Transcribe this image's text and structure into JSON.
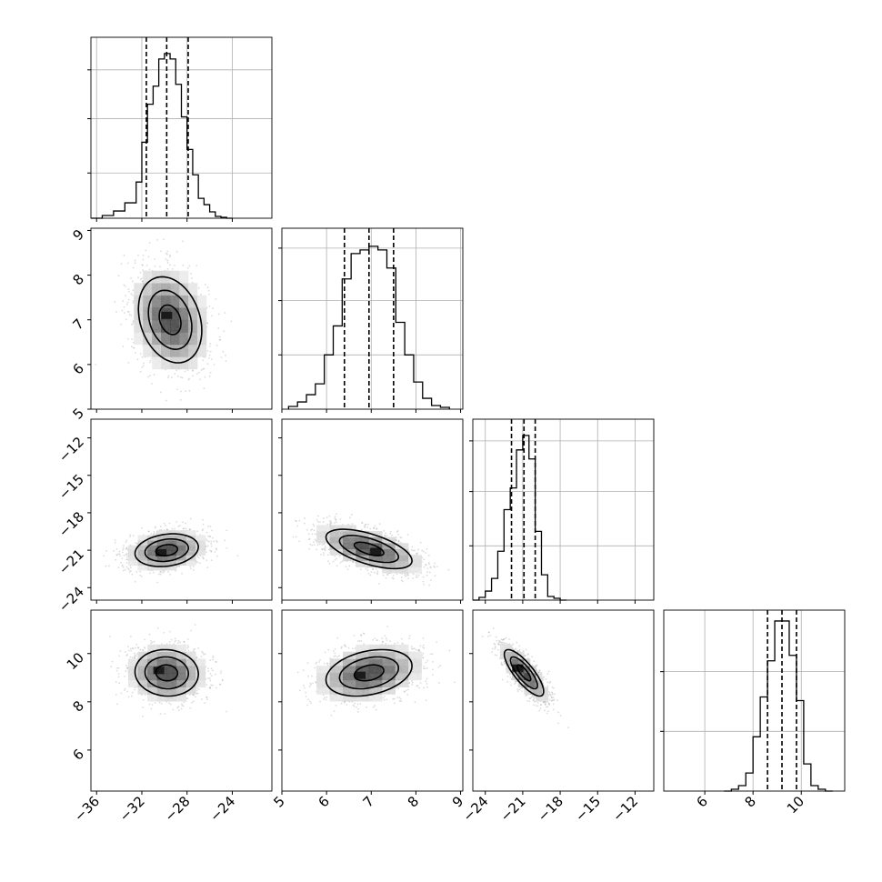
{
  "chart_data": {
    "type": "corner",
    "grid": true,
    "parameters": [
      {
        "range": [
          -36.5,
          -20.5
        ],
        "ticks": [
          -36,
          -32,
          -28,
          -24
        ],
        "tick_labels": [
          "−36",
          "−32",
          "−28",
          "−24"
        ],
        "quantiles": [
          -31.6,
          -29.8,
          -27.9
        ],
        "hist_grid": [
          0.25,
          0.55,
          0.82
        ],
        "hist_edges": [
          -36.5,
          -35.5,
          -34.5,
          -33.5,
          -32.5,
          -32.0,
          -31.5,
          -31.0,
          -30.5,
          -30.0,
          -29.5,
          -29.0,
          -28.5,
          -28.0,
          -27.5,
          -27.0,
          -26.5,
          -26.0,
          -25.5,
          -25.0,
          -24.5,
          -24.0
        ],
        "hist_values": [
          0.0,
          0.015,
          0.04,
          0.085,
          0.2,
          0.42,
          0.63,
          0.73,
          0.88,
          0.91,
          0.88,
          0.74,
          0.56,
          0.38,
          0.24,
          0.11,
          0.075,
          0.035,
          0.01,
          0.005,
          0.0
        ]
      },
      {
        "range": [
          5.0,
          9.05
        ],
        "ticks": [
          5,
          6,
          7,
          8,
          9
        ],
        "tick_labels": [
          "5",
          "6",
          "7",
          "8",
          "9"
        ],
        "quantiles": [
          6.4,
          6.95,
          7.5
        ],
        "hist_grid": [
          0.3,
          0.6,
          0.89
        ],
        "hist_edges": [
          5.15,
          5.35,
          5.55,
          5.75,
          5.95,
          6.15,
          6.35,
          6.55,
          6.75,
          6.95,
          7.15,
          7.35,
          7.55,
          7.75,
          7.95,
          8.15,
          8.35,
          8.55,
          8.75
        ],
        "hist_values": [
          0.015,
          0.04,
          0.08,
          0.14,
          0.3,
          0.46,
          0.72,
          0.86,
          0.88,
          0.9,
          0.88,
          0.78,
          0.48,
          0.3,
          0.15,
          0.06,
          0.02,
          0.01
        ]
      },
      {
        "range": [
          -25.0,
          -10.5
        ],
        "ticks": [
          -24,
          -21,
          -18,
          -15,
          -12
        ],
        "tick_labels": [
          "−24",
          "−21",
          "−18",
          "−15",
          "−12"
        ],
        "quantiles": [
          -21.9,
          -20.9,
          -20.0
        ],
        "hist_grid": [
          0.3,
          0.6,
          0.88
        ],
        "hist_edges": [
          -25.0,
          -24.5,
          -24.0,
          -23.5,
          -23.0,
          -22.5,
          -22.0,
          -21.5,
          -21.0,
          -20.5,
          -20.0,
          -19.5,
          -19.0,
          -18.5,
          -18.0,
          -17.5
        ],
        "hist_values": [
          0.0,
          0.015,
          0.05,
          0.12,
          0.27,
          0.5,
          0.62,
          0.83,
          0.91,
          0.78,
          0.38,
          0.14,
          0.02,
          0.01,
          0.0
        ]
      },
      {
        "range": [
          4.3,
          11.8
        ],
        "ticks": [
          6,
          8,
          10
        ],
        "tick_labels": [
          "6",
          "8",
          "10"
        ],
        "quantiles": [
          8.6,
          9.2,
          9.8
        ],
        "hist_grid": [
          0.33,
          0.66
        ],
        "hist_edges": [
          6.8,
          7.1,
          7.4,
          7.7,
          8.0,
          8.3,
          8.6,
          8.9,
          9.2,
          9.5,
          9.8,
          10.1,
          10.4,
          10.7,
          11.0,
          11.3
        ],
        "hist_values": [
          0.0,
          0.01,
          0.03,
          0.1,
          0.3,
          0.52,
          0.72,
          0.94,
          0.94,
          0.75,
          0.5,
          0.15,
          0.03,
          0.01,
          0.0
        ]
      }
    ],
    "pairs": [
      {
        "row": 1,
        "col": 0,
        "center": [
          -29.5,
          7.0
        ],
        "sigma": [
          1.6,
          0.55
        ],
        "rho": -0.25,
        "spread": 3.0,
        "peak": [
          -29.8,
          7.1
        ]
      },
      {
        "row": 2,
        "col": 0,
        "center": [
          -29.8,
          -21.0
        ],
        "sigma": [
          1.6,
          0.75
        ],
        "rho": 0.2,
        "spread": 3.2,
        "peak": [
          -30.3,
          -21.2
        ]
      },
      {
        "row": 2,
        "col": 1,
        "center": [
          6.95,
          -20.9
        ],
        "sigma": [
          0.55,
          0.9
        ],
        "rho": -0.6,
        "spread": 3.2,
        "peak": [
          7.1,
          -21.1
        ]
      },
      {
        "row": 3,
        "col": 0,
        "center": [
          -29.8,
          9.2
        ],
        "sigma": [
          1.6,
          0.55
        ],
        "rho": -0.05,
        "spread": 3.2,
        "peak": [
          -30.5,
          9.3
        ]
      },
      {
        "row": 3,
        "col": 1,
        "center": [
          6.95,
          9.2
        ],
        "sigma": [
          0.55,
          0.55
        ],
        "rho": 0.3,
        "spread": 3.2,
        "peak": [
          6.75,
          9.1
        ]
      },
      {
        "row": 3,
        "col": 2,
        "center": [
          -20.9,
          9.2
        ],
        "sigma": [
          0.9,
          0.55
        ],
        "rho": -0.8,
        "spread": 3.2,
        "peak": [
          -21.4,
          9.4
        ]
      }
    ],
    "contour_levels": [
      0.6,
      1.2,
      1.75
    ],
    "density_cells": 12,
    "scatter_per_panel": 1500,
    "colors": {
      "points": "#9a9a9a",
      "density_dark": "#1a1a1a",
      "contour": "#000000",
      "grid": "#b0b0b0"
    }
  }
}
